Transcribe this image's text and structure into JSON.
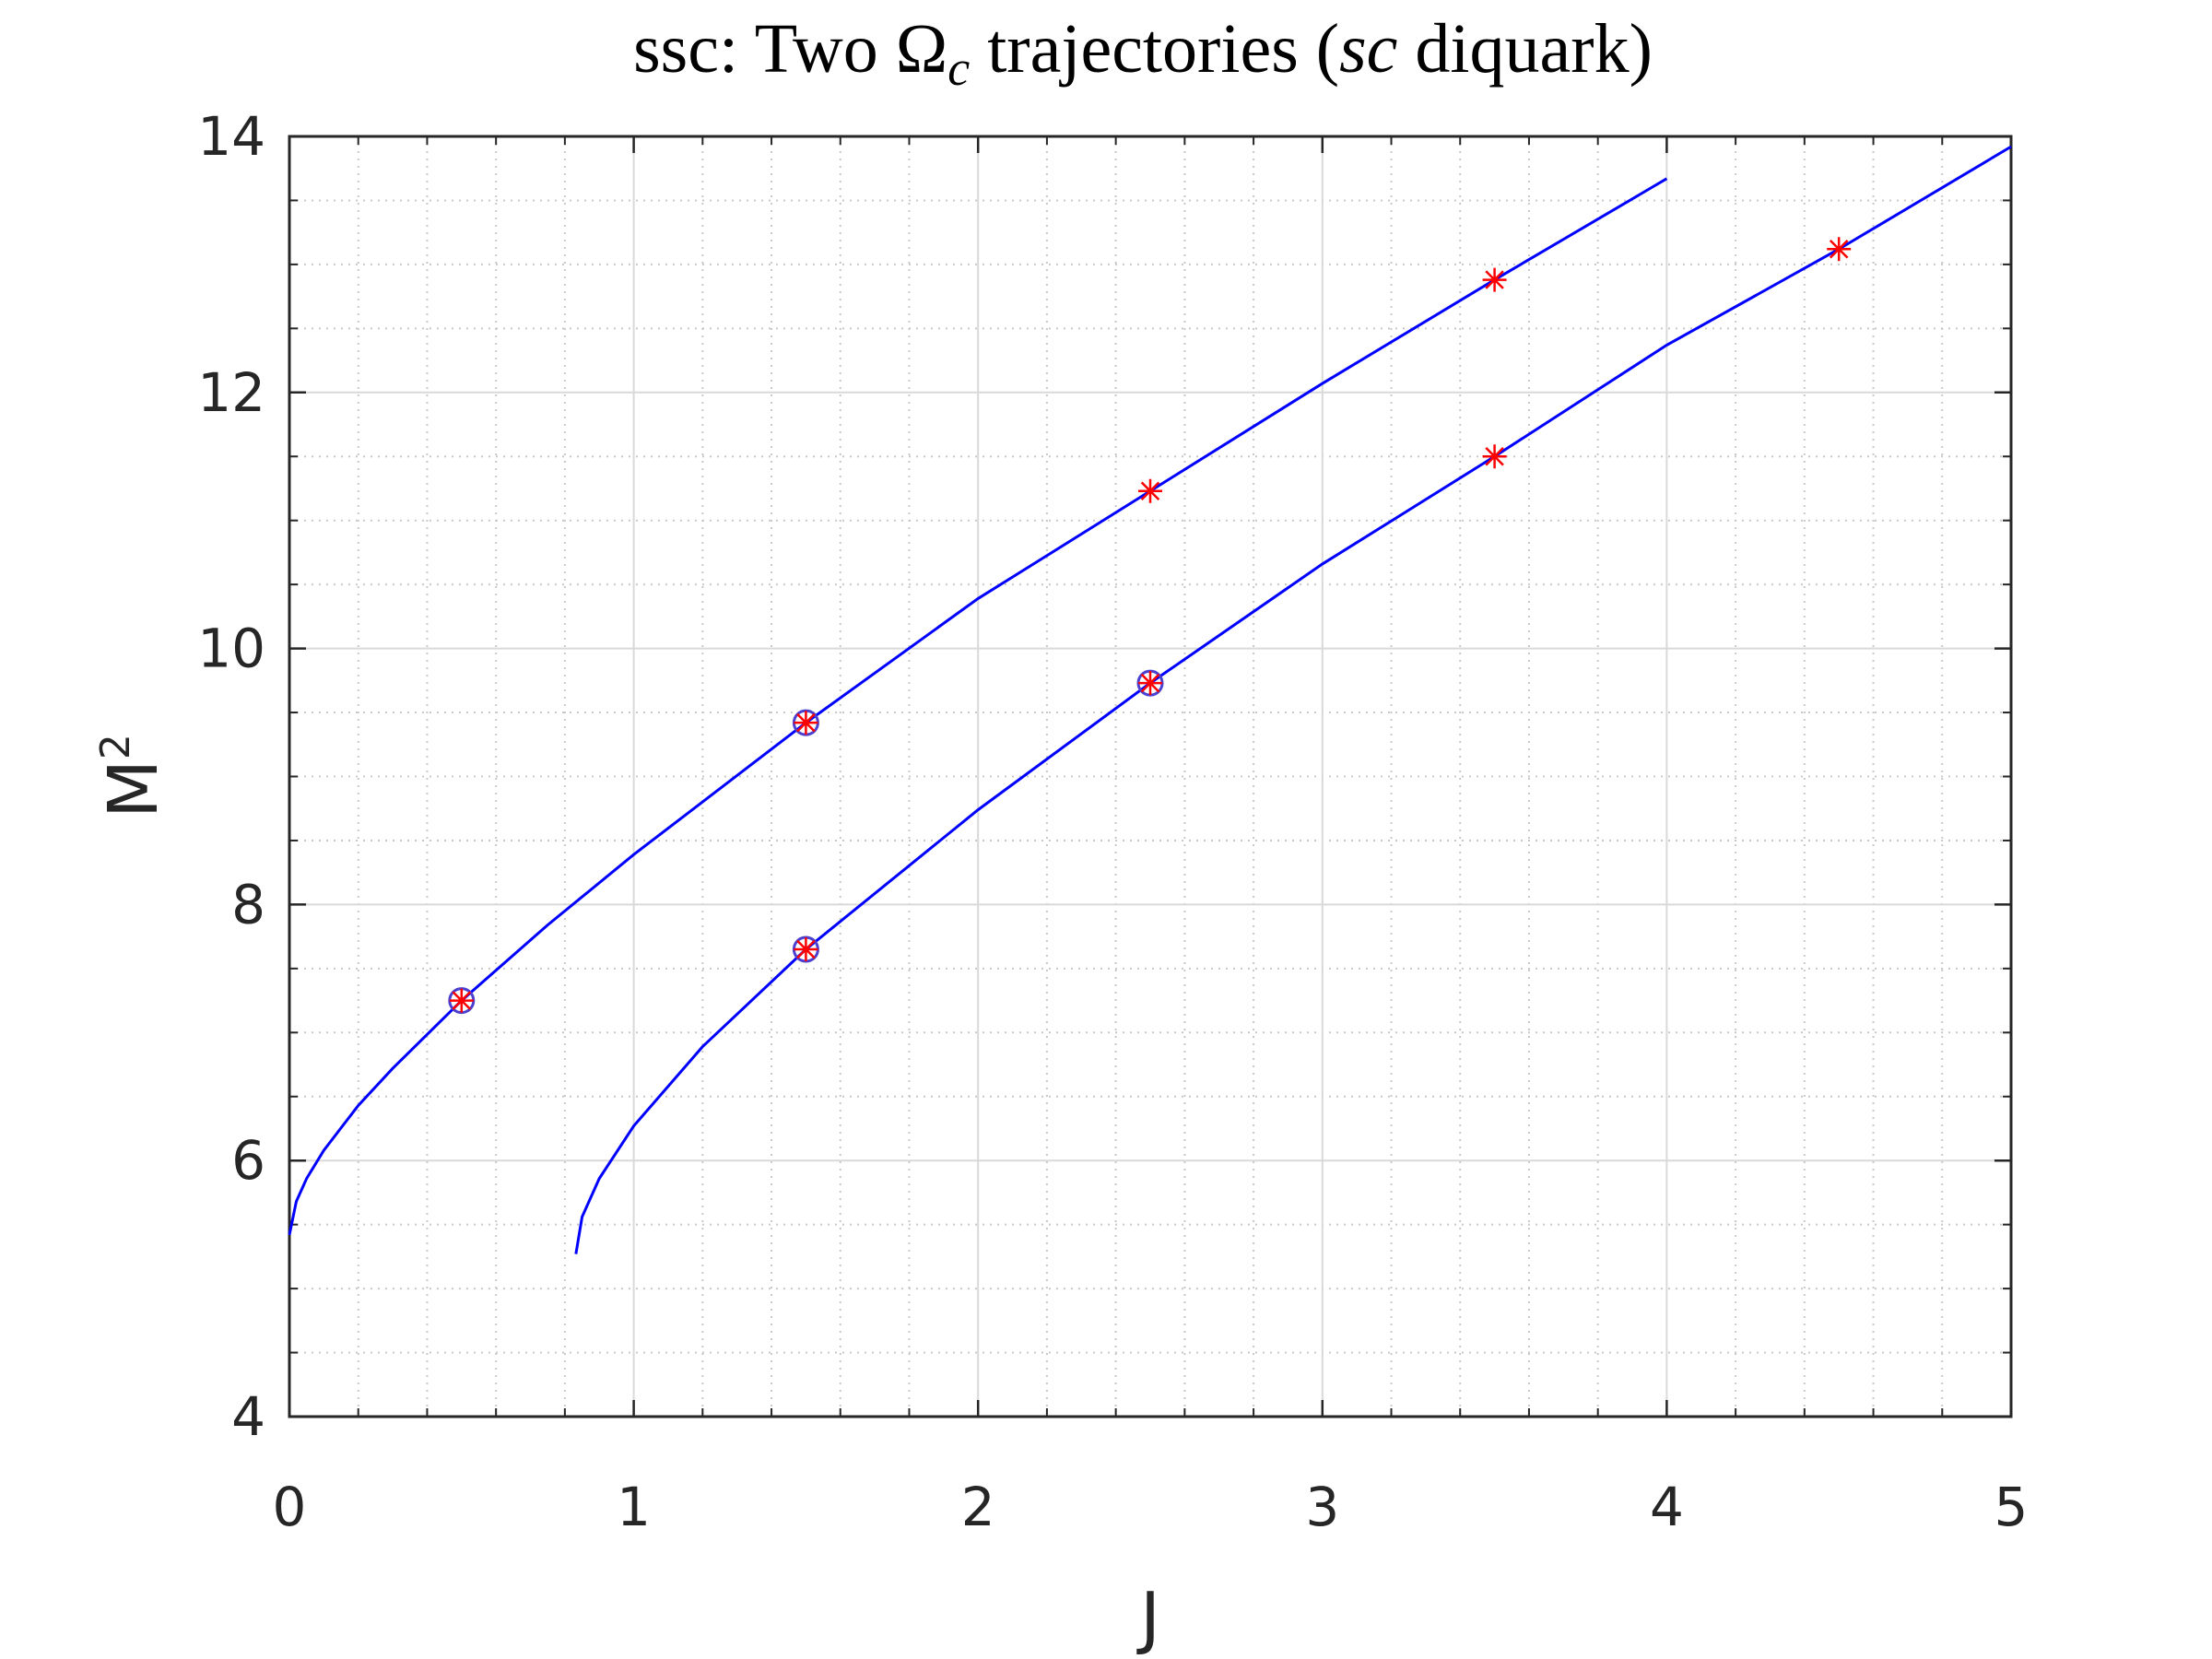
{
  "chart_data": {
    "type": "line",
    "title": [
      "ssc: Two Ω",
      "c",
      " trajectories (",
      "sc",
      " diquark)"
    ],
    "xlabel": "J",
    "ylabel": [
      "M",
      "2"
    ],
    "xlim": [
      0,
      5
    ],
    "ylim": [
      4,
      14
    ],
    "xticks": [
      0,
      1,
      2,
      3,
      4,
      5
    ],
    "yticks": [
      4,
      6,
      8,
      10,
      12,
      14
    ],
    "xminor": [
      0.2,
      0.4,
      0.6,
      0.8,
      1.2,
      1.4,
      1.6,
      1.8,
      2.2,
      2.4,
      2.6,
      2.8,
      3.2,
      3.4,
      3.6,
      3.8,
      4.2,
      4.4,
      4.6,
      4.8
    ],
    "yminor": [
      4.5,
      5,
      5.5,
      6.5,
      7,
      7.5,
      8.5,
      9,
      9.5,
      10.5,
      11,
      11.5,
      12.5,
      13,
      13.5
    ],
    "grid": true,
    "minor_grid": true,
    "series": [
      {
        "color": "#0000ff",
        "marker": "none",
        "x": [
          0,
          0.02,
          0.05,
          0.1,
          0.2,
          0.3,
          0.5,
          0.75,
          1,
          1.5,
          2,
          2.5,
          3,
          3.5,
          4
        ],
        "values": [
          5.42,
          5.68,
          5.86,
          6.08,
          6.43,
          6.72,
          7.25,
          7.84,
          8.39,
          9.42,
          10.39,
          11.23,
          12.07,
          12.88,
          13.67
        ]
      },
      {
        "color": "#0000ff",
        "marker": "none",
        "x": [
          0.832,
          0.85,
          0.9,
          1,
          1.2,
          1.5,
          2,
          2.5,
          3,
          3.5,
          4,
          4.5,
          5
        ],
        "values": [
          5.27,
          5.56,
          5.86,
          6.27,
          6.89,
          7.65,
          8.74,
          9.73,
          10.66,
          11.5,
          12.37,
          13.12,
          13.92
        ]
      },
      {
        "color": "#4b3fd0",
        "marker": "circle",
        "x": [
          0.5,
          1.5,
          1.5,
          2.5
        ],
        "values": [
          7.25,
          9.42,
          7.65,
          9.73
        ]
      },
      {
        "color": "#ff0000",
        "marker": "star",
        "x": [
          0.5,
          1.5,
          2.5,
          3.5,
          1.5,
          2.5,
          3.5,
          4.5
        ],
        "values": [
          7.25,
          9.42,
          11.23,
          12.88,
          7.65,
          9.73,
          11.5,
          13.12
        ]
      }
    ]
  }
}
